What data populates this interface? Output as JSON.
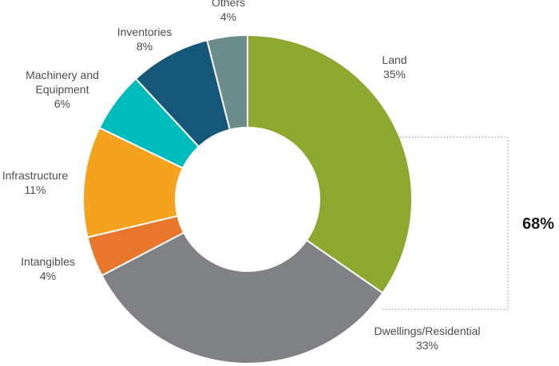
{
  "chart_data": {
    "type": "pie",
    "donut": true,
    "title": "",
    "slices": [
      {
        "label": "Land",
        "value": 35,
        "value_label": "35%",
        "color": "#8ca82e"
      },
      {
        "label": "Dwellings/Residential",
        "value": 33,
        "value_label": "33%",
        "color": "#808184"
      },
      {
        "label": "Intangibles",
        "value": 4,
        "value_label": "4%",
        "color": "#e8772d"
      },
      {
        "label": "Infrastructure",
        "value": 11,
        "value_label": "11%",
        "color": "#f5a21e"
      },
      {
        "label": "Machinery and Equipment",
        "value": 6,
        "value_label": "6%",
        "color": "#00bbbb"
      },
      {
        "label": "Inventories",
        "value": 8,
        "value_label": "8%",
        "color": "#155779"
      },
      {
        "label": "Others",
        "value": 4,
        "value_label": "4%",
        "color": "#6a8c8a"
      }
    ],
    "start": "12 o'clock",
    "direction": "clockwise",
    "annotations": [
      {
        "text": "68%",
        "spans": [
          "Land",
          "Dwellings/Residential"
        ],
        "style": "dotted bracket on the right"
      }
    ]
  }
}
